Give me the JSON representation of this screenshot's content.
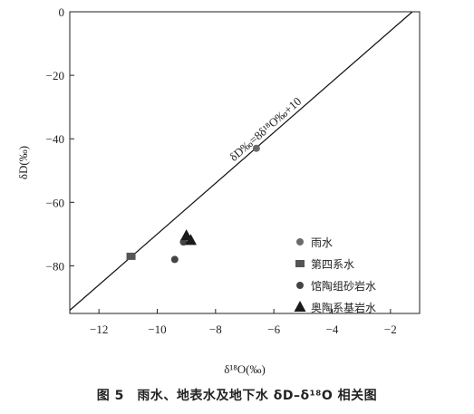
{
  "caption": "图 5　雨水、地表水及地下水 δD–δ¹⁸O 相关图",
  "chart_data": {
    "type": "scatter",
    "title": "",
    "xlabel": "δ¹⁸O(‰)",
    "ylabel": "δD(‰)",
    "xlim": [
      -13,
      -1
    ],
    "ylim": [
      -95,
      0
    ],
    "xticks": [
      -12,
      -10,
      -8,
      -6,
      -4,
      -2
    ],
    "yticks": [
      0,
      -20,
      -40,
      -60,
      -80
    ],
    "legend_position": "lower-right",
    "reference_line": {
      "label": "δD‰=8δ¹⁸O‰+10",
      "slope": 8,
      "intercept": 10
    },
    "series": [
      {
        "name": "雨水",
        "marker": "circle",
        "color": "#6b6b6b",
        "points": [
          {
            "x": -6.6,
            "y": -43
          }
        ]
      },
      {
        "name": "第四系水",
        "marker": "square",
        "color": "#555555",
        "points": [
          {
            "x": -10.9,
            "y": -77
          }
        ]
      },
      {
        "name": "馆陶组砂岩水",
        "marker": "circle-dark",
        "color": "#444444",
        "points": [
          {
            "x": -9.4,
            "y": -78
          },
          {
            "x": -9.1,
            "y": -72.5
          }
        ]
      },
      {
        "name": "奥陶系基岩水",
        "marker": "triangle",
        "color": "#1a1a1a",
        "points": [
          {
            "x": -9.0,
            "y": -70.5
          },
          {
            "x": -8.85,
            "y": -72
          }
        ]
      }
    ]
  }
}
